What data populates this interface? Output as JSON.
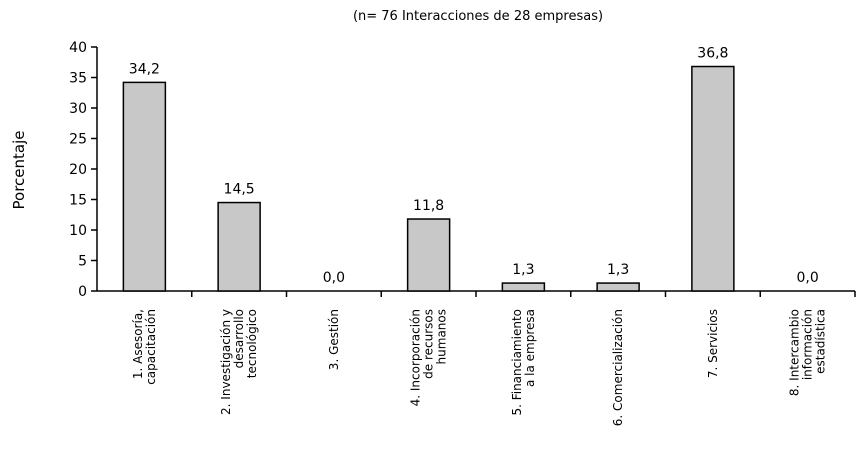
{
  "chart_data": {
    "type": "bar",
    "subtitle": "(n= 76 Interacciones de 28 empresas)",
    "ylabel": "Porcentaje",
    "xlabel": "",
    "ylim": [
      0,
      40
    ],
    "yticks": [
      0,
      5,
      10,
      15,
      20,
      25,
      30,
      35,
      40
    ],
    "categories": [
      [
        "1. Asesoría,",
        "capacitación"
      ],
      [
        "2. Investigación y",
        "desarrollo",
        "tecnológico"
      ],
      [
        "3. Gestión"
      ],
      [
        "4. Incorporación",
        "de recursos",
        "humanos"
      ],
      [
        "5. Financiamiento",
        "a la empresa"
      ],
      [
        "6. Comercialización"
      ],
      [
        "7. Servicios"
      ],
      [
        "8. Intercambio",
        "información",
        "estadística"
      ]
    ],
    "values": [
      34.2,
      14.5,
      0.0,
      11.8,
      1.3,
      1.3,
      36.8,
      0.0
    ],
    "value_labels": [
      "34,2",
      "14,5",
      "0,0",
      "11,8",
      "1,3",
      "1,3",
      "36,8",
      "0,0"
    ],
    "bar_color": "#c8c8c8",
    "bar_edge_color": "#000000",
    "grid": false
  }
}
